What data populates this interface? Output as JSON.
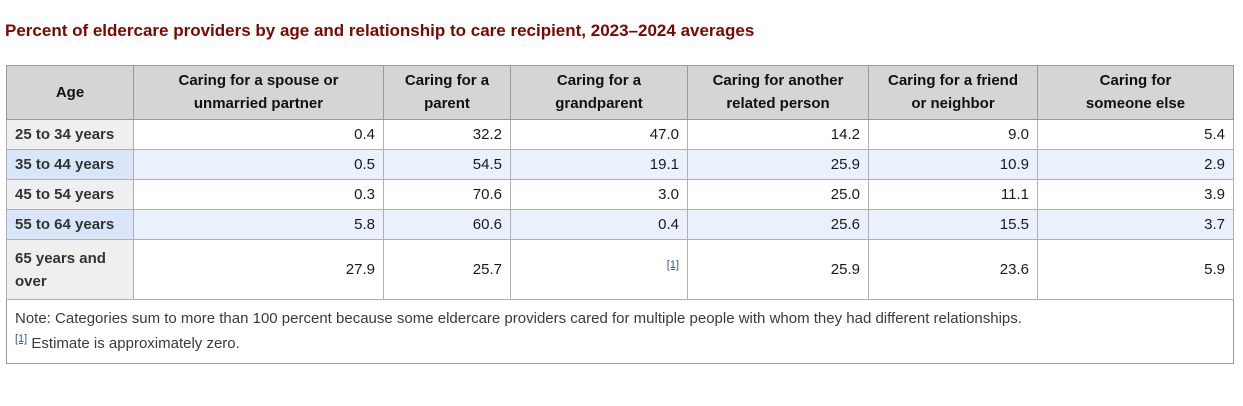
{
  "title": "Percent of eldercare providers by age and relationship to care recipient, 2023–2024 averages",
  "colors": {
    "title_color": "#7a0800",
    "header_bg": "#d5d5d5",
    "stub_bg": "#efefef",
    "stripe_bg": "#eaf1fc",
    "stripe_stub_bg": "#d9e6fa",
    "link_color": "#2b5d9e"
  },
  "table": {
    "columns": [
      {
        "label": "Age",
        "label2": ""
      },
      {
        "label": "Caring for a spouse or",
        "label2": "unmarried partner"
      },
      {
        "label": "Caring for a",
        "label2": "parent"
      },
      {
        "label": "Caring for a",
        "label2": "grandparent"
      },
      {
        "label": "Caring for another",
        "label2": "related person"
      },
      {
        "label": "Caring for a friend",
        "label2": "or neighbor"
      },
      {
        "label": "Caring for",
        "label2": "someone else"
      }
    ],
    "rows": [
      {
        "label": "25 to 34 years",
        "values": [
          "0.4",
          "32.2",
          "47.0",
          "14.2",
          "9.0",
          "5.4"
        ]
      },
      {
        "label": "35 to 44 years",
        "values": [
          "0.5",
          "54.5",
          "19.1",
          "25.9",
          "10.9",
          "2.9"
        ]
      },
      {
        "label": "45 to 54 years",
        "values": [
          "0.3",
          "70.6",
          "3.0",
          "25.0",
          "11.1",
          "3.9"
        ]
      },
      {
        "label": "55 to 64 years",
        "values": [
          "5.8",
          "60.6",
          "0.4",
          "25.6",
          "15.5",
          "3.7"
        ]
      },
      {
        "label": "65 years and over",
        "values": [
          "27.9",
          "25.7",
          "[1]",
          "25.9",
          "23.6",
          "5.9"
        ]
      }
    ],
    "footnote_marker": "[1]",
    "note": "Note: Categories sum to more than 100 percent because some eldercare providers cared for multiple people with whom they had different relationships.",
    "footnote_text": "Estimate is approximately zero."
  }
}
